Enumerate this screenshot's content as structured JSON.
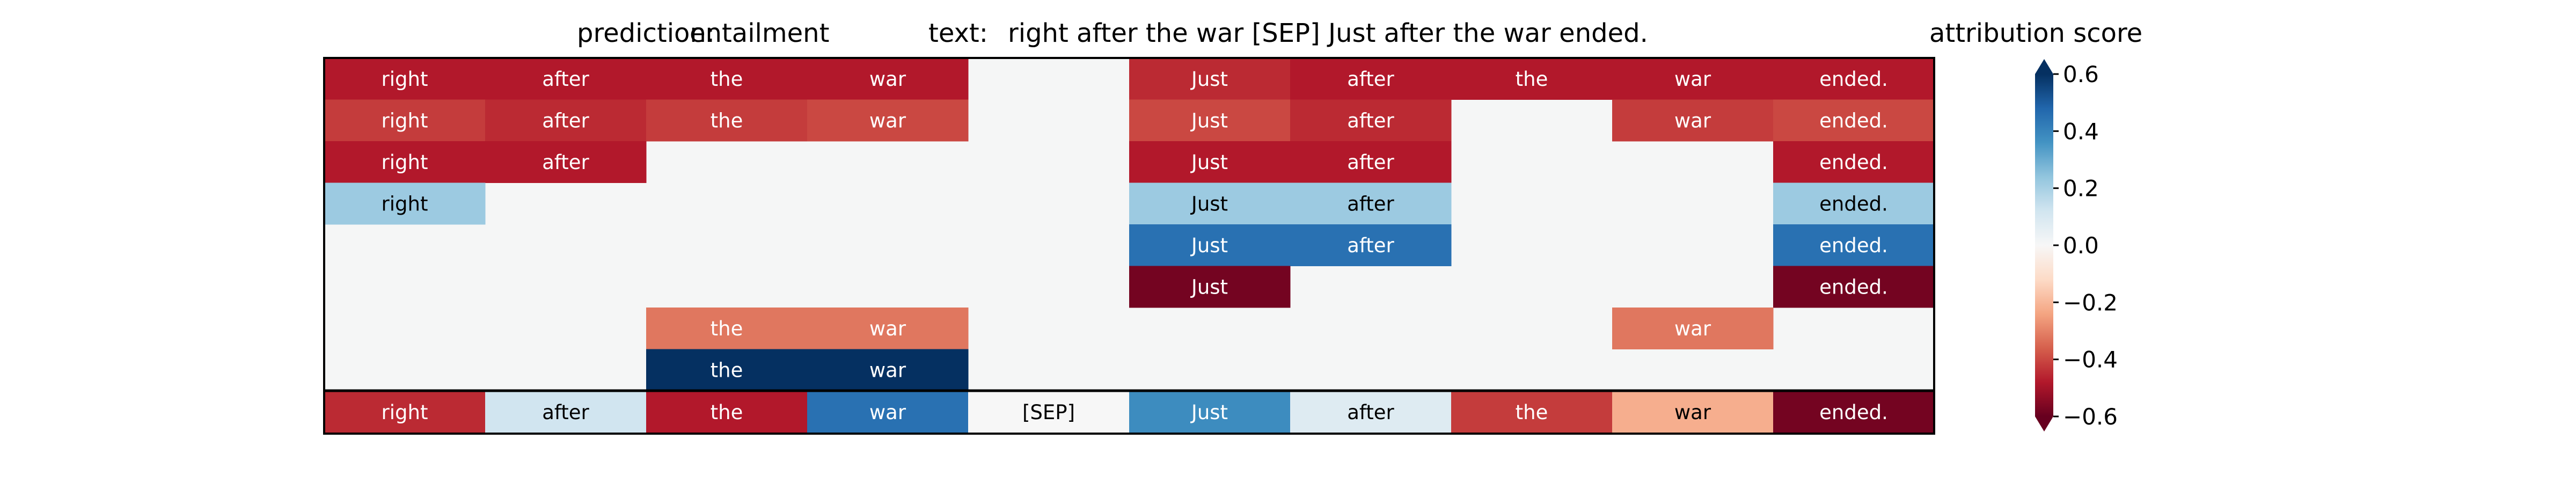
{
  "header": {
    "prediction_label": "prediction:",
    "prediction_value": "entailment",
    "text_label": "text:",
    "text_value": "right after the war [SEP] Just after the war ended."
  },
  "colorbar": {
    "title": "attribution score",
    "colormap": "RdBu",
    "range": [
      -0.6,
      0.6
    ],
    "ticks": [
      0.6,
      0.4,
      0.2,
      0.0,
      -0.2,
      -0.4,
      -0.6
    ],
    "tick_labels": [
      "0.6",
      "0.4",
      "0.2",
      "0.0",
      "−0.2",
      "−0.4",
      "−0.6"
    ]
  },
  "chart_data": {
    "type": "heatmap",
    "title": "prediction:  entailment     text:  right after the war [SEP] Just after the war ended.",
    "tokens": [
      "right",
      "after",
      "the",
      "war",
      "[SEP]",
      "Just",
      "after",
      "the",
      "war",
      "ended."
    ],
    "rows": [
      [
        -0.48,
        -0.48,
        -0.48,
        -0.48,
        null,
        -0.45,
        -0.48,
        -0.48,
        -0.48,
        -0.48
      ],
      [
        -0.42,
        -0.45,
        -0.42,
        -0.4,
        null,
        -0.4,
        -0.45,
        null,
        -0.42,
        -0.4
      ],
      [
        -0.48,
        -0.48,
        null,
        null,
        null,
        -0.48,
        -0.48,
        null,
        null,
        -0.48
      ],
      [
        0.22,
        null,
        null,
        null,
        null,
        0.22,
        0.22,
        null,
        null,
        0.22
      ],
      [
        null,
        null,
        null,
        null,
        null,
        0.45,
        0.45,
        null,
        null,
        0.45
      ],
      [
        null,
        null,
        null,
        null,
        null,
        -0.58,
        null,
        null,
        null,
        -0.58
      ],
      [
        null,
        null,
        -0.32,
        -0.32,
        null,
        null,
        null,
        null,
        -0.32,
        null
      ],
      [
        null,
        null,
        0.62,
        0.62,
        null,
        null,
        null,
        null,
        null,
        null
      ]
    ],
    "total_row": [
      -0.45,
      0.12,
      -0.48,
      0.45,
      0.0,
      0.38,
      0.08,
      -0.42,
      -0.22,
      -0.58
    ],
    "vmin": -0.6,
    "vmax": 0.6,
    "colorbar_label": "attribution score"
  }
}
